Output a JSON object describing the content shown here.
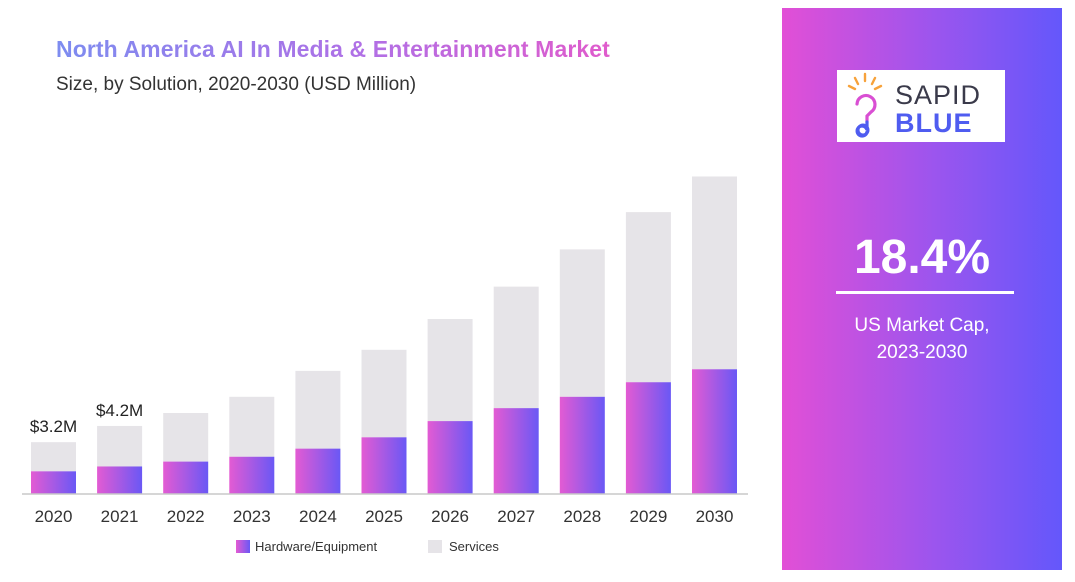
{
  "chart_data": {
    "type": "bar",
    "stacked": true,
    "title": "North America AI In Media & Entertainment Market",
    "subtitle": "Size, by Solution, 2020-2030 (USD Million)",
    "categories": [
      "2020",
      "2021",
      "2022",
      "2023",
      "2024",
      "2025",
      "2026",
      "2027",
      "2028",
      "2029",
      "2030"
    ],
    "series": [
      {
        "name": "Hardware/Equipment",
        "values": [
          1.4,
          1.7,
          2.0,
          2.3,
          2.8,
          3.5,
          4.5,
          5.3,
          6.0,
          6.9,
          7.7
        ]
      },
      {
        "name": "Services",
        "values": [
          1.8,
          2.5,
          3.0,
          3.7,
          4.8,
          5.4,
          6.3,
          7.5,
          9.1,
          10.5,
          11.9
        ]
      }
    ],
    "data_labels": [
      {
        "category": "2020",
        "text": "$3.2M"
      },
      {
        "category": "2021",
        "text": "$4.2M"
      }
    ],
    "ylim": [
      0,
      20
    ],
    "legend_position": "bottom",
    "grid": false,
    "colors": {
      "hardware_start": "#e35bd3",
      "hardware_end": "#6a58f5",
      "services": "#e6e4e8",
      "axis": "#c8c8c8"
    }
  },
  "side_panel": {
    "logo": {
      "line1": "SAPID",
      "line2": "BLUE",
      "icon": "lightbulb-icon"
    },
    "highlight_value": "18.4%",
    "caption_line1": "US Market Cap,",
    "caption_line2": "2023-2030"
  }
}
